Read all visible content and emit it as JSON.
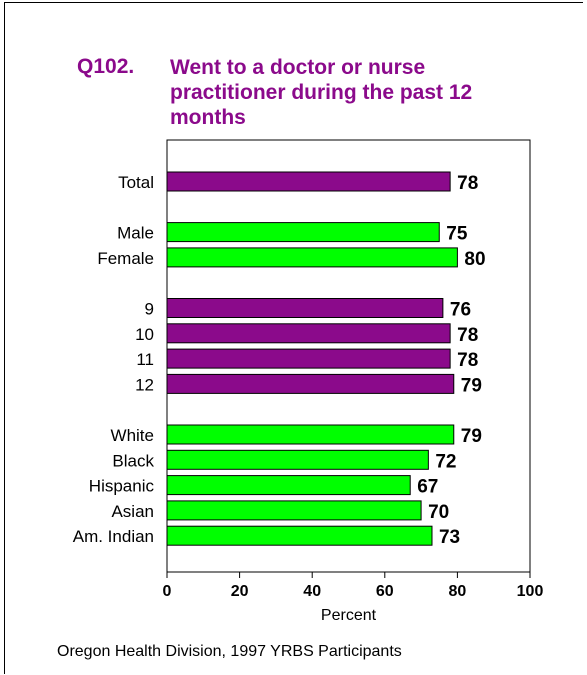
{
  "question": {
    "number": "Q102.",
    "title_lines": [
      "Went to a doctor or nurse",
      "practitioner during the past 12",
      "months"
    ]
  },
  "footer": "Oregon Health Division, 1997 YRBS Participants",
  "colors": {
    "purple": "#8B0A8B",
    "green": "#00FF00",
    "title": "#8B0A8B"
  },
  "chart_data": {
    "type": "bar",
    "orientation": "horizontal",
    "categories": [
      "Total",
      "Male",
      "Female",
      "9",
      "10",
      "11",
      "12",
      "White",
      "Black",
      "Hispanic",
      "Asian",
      "Am. Indian"
    ],
    "values": [
      78,
      75,
      80,
      76,
      78,
      78,
      79,
      79,
      72,
      67,
      70,
      73
    ],
    "data_labels": [
      "78",
      "75",
      "80",
      "76",
      "78",
      "78",
      "79",
      "79",
      "72",
      "67",
      "70",
      "73"
    ],
    "bar_colors": [
      "purple",
      "green",
      "green",
      "purple",
      "purple",
      "purple",
      "purple",
      "green",
      "green",
      "green",
      "green",
      "green"
    ],
    "groups": [
      [
        "Total"
      ],
      [
        "Male",
        "Female"
      ],
      [
        "9",
        "10",
        "11",
        "12"
      ],
      [
        "White",
        "Black",
        "Hispanic",
        "Asian",
        "Am. Indian"
      ]
    ],
    "xlabel": "Percent",
    "xlim": [
      0,
      100
    ],
    "xticks": [
      0,
      20,
      40,
      60,
      80,
      100
    ],
    "xtick_labels": [
      "0",
      "20",
      "40",
      "60",
      "80",
      "100"
    ],
    "grid": false
  }
}
